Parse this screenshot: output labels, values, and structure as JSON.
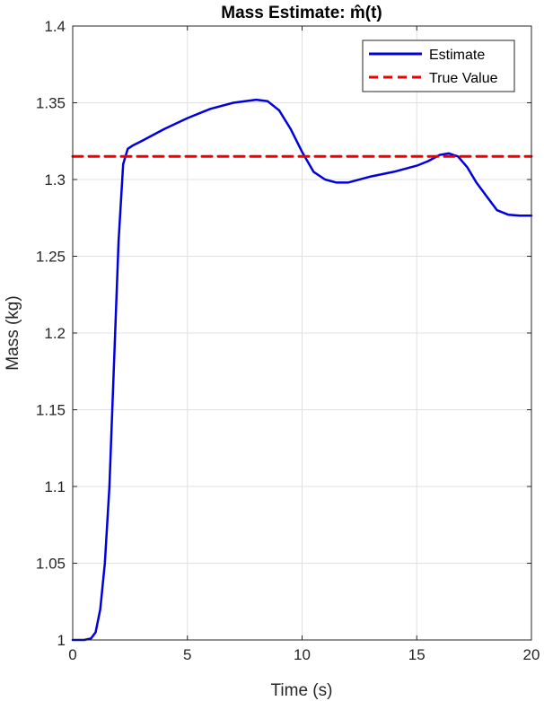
{
  "chart_data": {
    "type": "line",
    "title": "Mass Estimate: m̂(t)",
    "xlabel": "Time (s)",
    "ylabel": "Mass (kg)",
    "xlim": [
      0,
      20
    ],
    "ylim": [
      1,
      1.4
    ],
    "xticks": [
      0,
      5,
      10,
      15,
      20
    ],
    "xtick_labels": [
      "0",
      "5",
      "10",
      "15",
      "20"
    ],
    "yticks": [
      1,
      1.05,
      1.1,
      1.15,
      1.2,
      1.25,
      1.3,
      1.35,
      1.4
    ],
    "ytick_labels": [
      "1",
      "1.05",
      "1.1",
      "1.15",
      "1.2",
      "1.25",
      "1.3",
      "1.35",
      "1.4"
    ],
    "grid": true,
    "legend_position": "top-right",
    "colors": {
      "estimate": "#0000dd",
      "true_value": "#ee0000",
      "grid": "#e0e0e0",
      "axis": "#262626"
    },
    "series": [
      {
        "name": "Estimate",
        "style": "solid",
        "x": [
          0,
          0.5,
          0.8,
          1.0,
          1.2,
          1.4,
          1.6,
          1.8,
          2.0,
          2.2,
          2.4,
          2.6,
          3.0,
          4.0,
          5.0,
          6.0,
          7.0,
          8.0,
          8.5,
          9.0,
          9.5,
          10.0,
          10.5,
          11.0,
          11.5,
          12.0,
          13.0,
          14.0,
          15.0,
          15.5,
          16.0,
          16.4,
          16.8,
          17.2,
          17.6,
          18.0,
          18.5,
          19.0,
          19.5,
          20.0
        ],
        "y": [
          1.0,
          1.0,
          1.001,
          1.005,
          1.02,
          1.05,
          1.1,
          1.18,
          1.26,
          1.31,
          1.32,
          1.322,
          1.325,
          1.333,
          1.34,
          1.346,
          1.35,
          1.352,
          1.351,
          1.345,
          1.333,
          1.318,
          1.305,
          1.3,
          1.298,
          1.298,
          1.302,
          1.305,
          1.309,
          1.312,
          1.316,
          1.317,
          1.315,
          1.308,
          1.298,
          1.29,
          1.28,
          1.277,
          1.2765,
          1.2765
        ]
      },
      {
        "name": "True Value",
        "style": "dashed",
        "x": [
          0,
          20
        ],
        "y": [
          1.315,
          1.315
        ]
      }
    ]
  }
}
